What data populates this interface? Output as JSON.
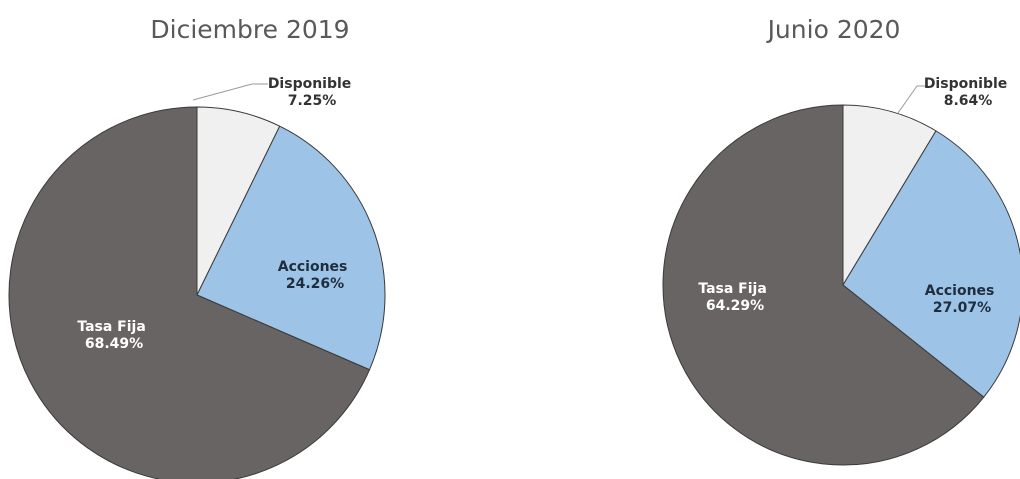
{
  "chart_data": [
    {
      "type": "pie",
      "title": "Diciembre 2019",
      "categories": [
        "Disponible",
        "Acciones",
        "Tasa Fija"
      ],
      "values": [
        7.25,
        24.26,
        68.49
      ],
      "value_labels": [
        "7.25%",
        "24.26%",
        "68.49%"
      ],
      "colors": [
        "#f0f0f0",
        "#9dc3e6",
        "#696464"
      ],
      "label_colors": [
        "#333333",
        "#1f2d3d",
        "#ffffff"
      ],
      "start_angle_deg": 0,
      "direction": "clockwise"
    },
    {
      "type": "pie",
      "title": "Junio 2020",
      "categories": [
        "Disponible",
        "Acciones",
        "Tasa Fija"
      ],
      "values": [
        8.64,
        27.07,
        64.29
      ],
      "value_labels": [
        "8.64%",
        "27.07%",
        "64.29%"
      ],
      "colors": [
        "#f0f0f0",
        "#9dc3e6",
        "#696464"
      ],
      "label_colors": [
        "#333333",
        "#1f2d3d",
        "#ffffff"
      ],
      "start_angle_deg": 0,
      "direction": "clockwise"
    }
  ]
}
